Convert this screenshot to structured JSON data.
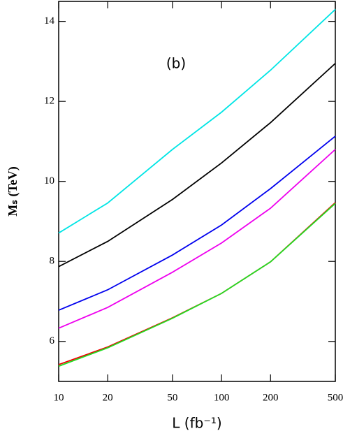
{
  "chart_data": {
    "type": "line",
    "annotation": "(b)",
    "xlabel": "L (fb⁻¹)",
    "ylabel": "Mₛ  (TeV)",
    "xscale": "log",
    "x": [
      10,
      20,
      50,
      100,
      200,
      500
    ],
    "xlim": [
      10,
      500
    ],
    "xticks": [
      10,
      20,
      50,
      100,
      200,
      500
    ],
    "ylim": [
      5,
      14.5
    ],
    "yticks": [
      6,
      8,
      10,
      12,
      14
    ],
    "grid": false,
    "series": [
      {
        "color": "#00e5e5",
        "values": [
          8.71,
          9.46,
          10.8,
          11.73,
          12.78,
          14.3
        ]
      },
      {
        "color": "#000000",
        "values": [
          7.87,
          8.5,
          9.55,
          10.46,
          11.47,
          12.95
        ]
      },
      {
        "color": "#0000ee",
        "values": [
          6.78,
          7.29,
          8.16,
          8.91,
          9.82,
          11.13
        ]
      },
      {
        "color": "#ee00ee",
        "values": [
          6.33,
          6.85,
          7.73,
          8.46,
          9.33,
          10.8
        ]
      },
      {
        "color": "#ee0000",
        "values": [
          5.42,
          5.86,
          6.59,
          7.2,
          7.99,
          9.47
        ]
      },
      {
        "color": "#22dd22",
        "values": [
          5.38,
          5.84,
          6.58,
          7.2,
          7.99,
          9.45
        ]
      }
    ]
  }
}
